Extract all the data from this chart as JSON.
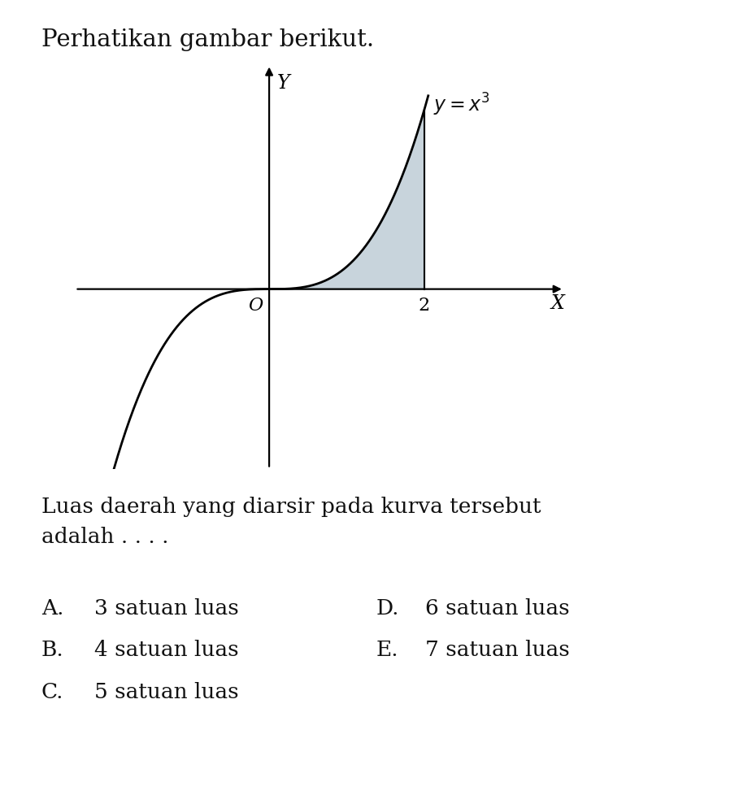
{
  "title": "Perhatikan gambar berikut.",
  "origin_label": "O",
  "x_axis_label": "X",
  "y_axis_label": "Y",
  "x_tick_label": "2",
  "x_tick_val": 2.0,
  "x_range": [
    -2.5,
    3.8
  ],
  "y_range": [
    -8.0,
    10.0
  ],
  "shade_from": 0,
  "shade_to": 2,
  "shade_color": "#c8d4dc",
  "curve_color": "#000000",
  "axis_color": "#000000",
  "background_color": "#ffffff",
  "question_text": "Luas daerah yang diarsir pada kurva tersebut\nadalah . . . .",
  "options": [
    [
      "A.",
      "3 satuan luas",
      "D.",
      "6 satuan luas"
    ],
    [
      "B.",
      "4 satuan luas",
      "E.",
      "7 satuan luas"
    ],
    [
      "C.",
      "5 satuan luas",
      "",
      ""
    ]
  ],
  "title_fontsize": 21,
  "label_fontsize": 17,
  "tick_fontsize": 16,
  "curve_label_fontsize": 17,
  "question_fontsize": 19,
  "option_fontsize": 19
}
